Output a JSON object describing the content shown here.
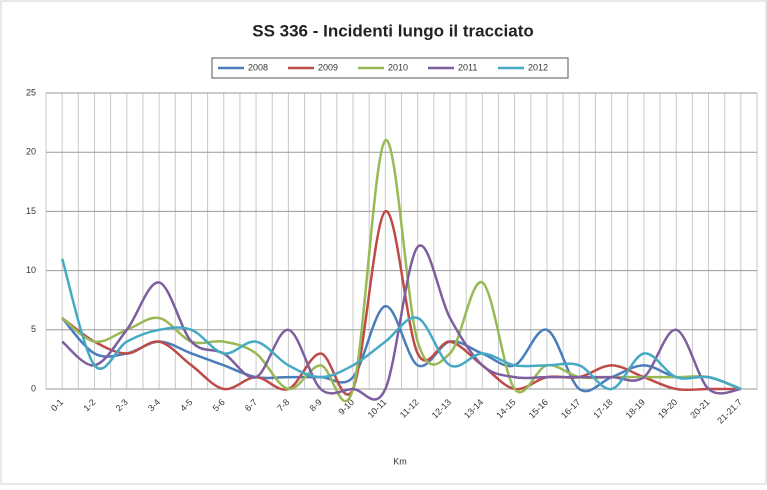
{
  "chart_data": {
    "type": "line",
    "title": "SS 336 - Incidenti lungo il tracciato",
    "x_label": "Km",
    "categories": [
      "0-1",
      "1-2",
      "2-3",
      "3-4",
      "4-5",
      "5-6",
      "6-7",
      "7-8",
      "8-9",
      "9-10",
      "10-11",
      "11-12",
      "12-13",
      "13-14",
      "14-15",
      "15-16",
      "16-17",
      "17-18",
      "18-19",
      "19-20",
      "20-21",
      "21-21.7"
    ],
    "series": [
      {
        "name": "2008",
        "color": "#4a7ebb",
        "values": [
          6,
          3,
          3,
          4,
          3,
          2,
          1,
          1,
          1,
          1,
          7,
          2,
          4,
          3,
          2,
          5,
          0,
          1,
          2,
          1,
          1,
          0
        ]
      },
      {
        "name": "2009",
        "color": "#be4b48",
        "values": [
          6,
          4,
          3,
          4,
          2,
          0,
          1,
          0,
          3,
          0,
          15,
          3,
          4,
          2,
          0,
          1,
          1,
          2,
          1,
          0,
          0,
          0
        ]
      },
      {
        "name": "2010",
        "color": "#98b954",
        "values": [
          6,
          4,
          5,
          6,
          4,
          4,
          3,
          0,
          2,
          0,
          21,
          4,
          3,
          9,
          0,
          2,
          1,
          1,
          1,
          1,
          1,
          0
        ]
      },
      {
        "name": "2011",
        "color": "#7d5fa0",
        "values": [
          4,
          2,
          5,
          9,
          4,
          3,
          1,
          5,
          0,
          0,
          0,
          12,
          6,
          2,
          1,
          1,
          1,
          1,
          1,
          5,
          0,
          0
        ]
      },
      {
        "name": "2012",
        "color": "#46aac5",
        "values": [
          11,
          2,
          4,
          5,
          5,
          3,
          4,
          2,
          1,
          2,
          4,
          6,
          2,
          3,
          2,
          2,
          2,
          0,
          3,
          1,
          1,
          0
        ]
      }
    ],
    "ylim": [
      0,
      25
    ],
    "yticks": [
      0,
      5,
      10,
      15,
      20,
      25
    ],
    "grid": true,
    "legend": "top",
    "smooth": true
  }
}
